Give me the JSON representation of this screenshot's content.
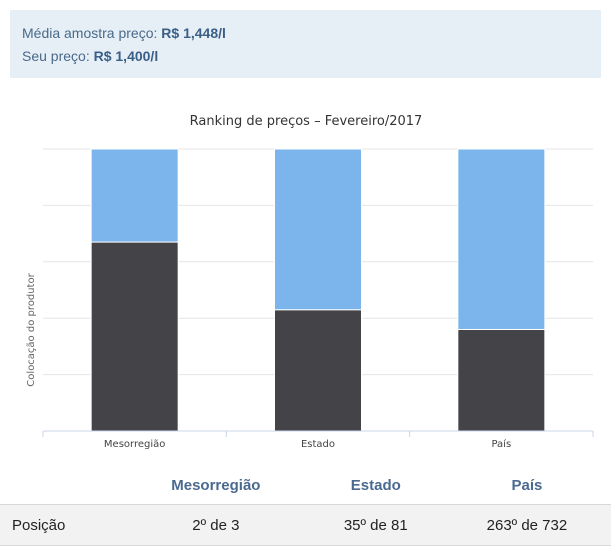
{
  "summary": {
    "avg_label": "Média amostra preço:",
    "avg_value": "R$ 1,448/l",
    "your_label": "Seu preço:",
    "your_value": "R$ 1,400/l"
  },
  "chart_data": {
    "type": "bar",
    "stacked": true,
    "title": "Ranking de preços – Fevereiro/2017",
    "xlabel": "",
    "ylabel": "Colocação do produtor",
    "categories": [
      "Mesorregião",
      "Estado",
      "País"
    ],
    "series": [
      {
        "values": [
          0.33,
          0.57,
          0.64
        ],
        "color": "#7cb5ec"
      },
      {
        "values": [
          0.67,
          0.43,
          0.36
        ],
        "color": "#434348"
      }
    ],
    "series_order_note": "",
    "ylim": [
      0,
      1
    ],
    "grid": true,
    "legend": "none"
  },
  "positions": {
    "headers": [
      "",
      "Mesorregião",
      "Estado",
      "País"
    ],
    "row_label": "Posição",
    "values": [
      "2º de 3",
      "35º de 81",
      "263º de 732"
    ]
  }
}
